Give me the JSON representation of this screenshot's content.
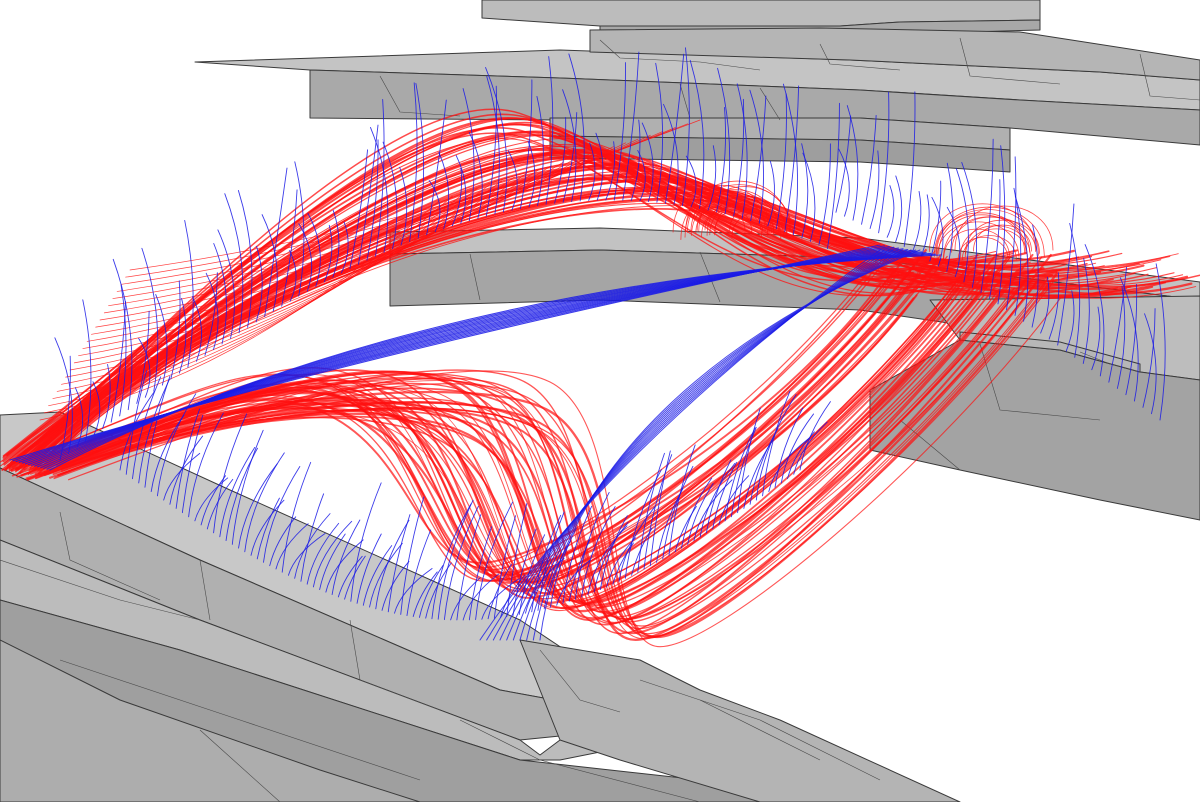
{
  "scene": {
    "kind": "3d-structural-wireframe",
    "background_color": "#ffffff",
    "geometry_fill_color": "#b8b8b8",
    "geometry_edge_color": "#3a3a3a",
    "curve_families": [
      {
        "name_key": "primary",
        "color": "#ff1010"
      },
      {
        "name_key": "secondary",
        "color": "#1a1ae6"
      }
    ],
    "text_labels": []
  }
}
